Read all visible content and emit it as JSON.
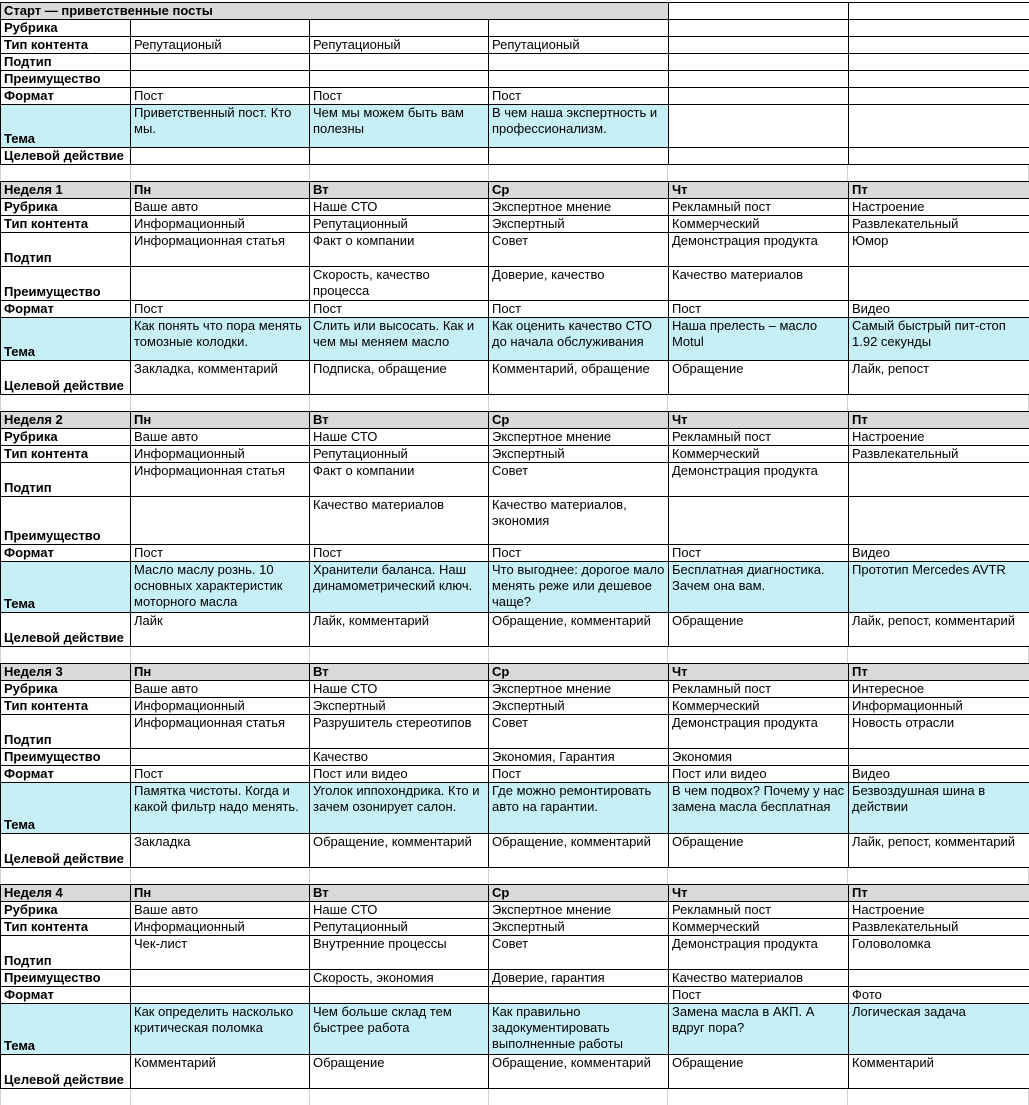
{
  "colors": {
    "section_header_bg": "#d9d9d9",
    "theme_row_bg": "#c6f0f6",
    "grid_border": "#000000"
  },
  "day_headers": [
    "Пн",
    "Вт",
    "Ср",
    "Чт",
    "Пт"
  ],
  "sections": [
    {
      "title": "Старт — приветственные посты",
      "merged_title": true,
      "rows": [
        {
          "label": "Рубрика",
          "cells": [
            "",
            "",
            "",
            "",
            ""
          ]
        },
        {
          "label": "Тип контента",
          "cells": [
            "Репутационый",
            "Репутационый",
            "Репутационый",
            "",
            ""
          ]
        },
        {
          "label": "Подтип",
          "cells": [
            "",
            "",
            "",
            "",
            ""
          ]
        },
        {
          "label": "Преимущество",
          "cells": [
            "",
            "",
            "",
            "",
            ""
          ]
        },
        {
          "label": "Формат",
          "cells": [
            "Пост",
            "Пост",
            "Пост",
            "",
            ""
          ]
        },
        {
          "label": "Тема",
          "highlight": true,
          "highlight_cols": 3,
          "cells": [
            "Приветственный пост. Кто мы.",
            "Чем мы можем быть вам полезны",
            "В чем наша экспертность и профессионализм.",
            "",
            ""
          ]
        },
        {
          "label": "Целевой действие",
          "cells": [
            "",
            "",
            "",
            "",
            ""
          ]
        }
      ]
    },
    {
      "title": "Неделя 1",
      "merged_title": false,
      "rows": [
        {
          "label": "Рубрика",
          "cells": [
            "Ваше авто",
            "Наше СТО",
            "Экспертное мнение",
            "Рекламный пост",
            "Настроение"
          ]
        },
        {
          "label": "Тип контента",
          "cells": [
            "Информационный",
            "Репутационный",
            "Экспертный",
            "Коммерческий",
            "Развлекательный"
          ]
        },
        {
          "label": "Подтип",
          "cells": [
            "Информационная статья",
            "Факт о компании",
            "Совет",
            "Демонстрация продукта",
            "Юмор"
          ]
        },
        {
          "label": "Преимущество",
          "cells": [
            "",
            "Скорость, качество процесса",
            "Доверие, качество",
            "Качество материалов",
            ""
          ]
        },
        {
          "label": "Формат",
          "cells": [
            "Пост",
            "Пост",
            "Пост",
            "Пост",
            "Видео"
          ]
        },
        {
          "label": "Тема",
          "highlight": true,
          "highlight_cols": 5,
          "cells": [
            "Как понять что пора менять томозные колодки.",
            "Слить или высосать. Как и чем мы меняем масло",
            "Как оценить качество СТО до начала обслуживания",
            "Наша прелесть – масло Motul",
            "Самый быстрый пит-стоп 1.92 секунды"
          ]
        },
        {
          "label": "Целевой действие",
          "cells": [
            "Закладка, комментарий",
            "Подписка, обращение",
            "Комментарий, обращение",
            "Обращение",
            "Лайк, репост"
          ]
        }
      ]
    },
    {
      "title": "Неделя 2",
      "merged_title": false,
      "rows": [
        {
          "label": "Рубрика",
          "cells": [
            "Ваше авто",
            "Наше СТО",
            "Экспертное мнение",
            "Рекламный пост",
            "Настроение"
          ]
        },
        {
          "label": "Тип контента",
          "cells": [
            "Информационный",
            "Репутационный",
            "Экспертный",
            "Коммерческий",
            "Развлекательный"
          ]
        },
        {
          "label": "Подтип",
          "cells": [
            "Информационная статья",
            "Факт о компании",
            "Совет",
            "Демонстрация продукта",
            ""
          ]
        },
        {
          "label": "Преимущество",
          "cells": [
            "",
            "Качество материалов",
            "Качество материалов, экономия",
            "",
            ""
          ]
        },
        {
          "label": "Формат",
          "cells": [
            "Пост",
            "Пост",
            "Пост",
            "Пост",
            "Видео"
          ]
        },
        {
          "label": "Тема",
          "highlight": true,
          "highlight_cols": 5,
          "cells": [
            "Масло маслу рознь. 10 основных характеристик моторного масла",
            "Хранители баланса. Наш динамометрический ключ.",
            "Что выгоднее: дорогое мало менять реже или дешевое чаще?",
            "Бесплатная диагностика. Зачем она вам.",
            "Прототип Mercedes AVTR"
          ]
        },
        {
          "label": "Целевой действие",
          "cells": [
            "Лайк",
            "Лайк, комментарий",
            "Обращение, комментарий",
            "Обращение",
            "Лайк, репост, комментарий"
          ]
        }
      ]
    },
    {
      "title": "Неделя 3",
      "merged_title": false,
      "rows": [
        {
          "label": "Рубрика",
          "cells": [
            "Ваше авто",
            "Наше СТО",
            "Экспертное мнение",
            "Рекламный пост",
            "Интересное"
          ]
        },
        {
          "label": "Тип контента",
          "cells": [
            "Информационный",
            "Экспертный",
            "Экспертный",
            "Коммерческий",
            "Информационный"
          ]
        },
        {
          "label": "Подтип",
          "cells": [
            "Информационная статья",
            "Разрушитель стереотипов",
            "Совет",
            "Демонстрация продукта",
            "Новость отрасли"
          ]
        },
        {
          "label": "Преимущество",
          "cells": [
            "",
            "Качество",
            "Экономия, Гарантия",
            "Экономия",
            ""
          ]
        },
        {
          "label": "Формат",
          "cells": [
            "Пост",
            "Пост или видео",
            "Пост",
            "Пост или видео",
            "Видео"
          ]
        },
        {
          "label": "Тема",
          "highlight": true,
          "highlight_cols": 5,
          "cells": [
            "Памятка чистоты. Когда и какой фильтр надо менять.",
            "Уголок иппохондрика. Кто и зачем озонирует салон.",
            "Где можно ремонтировать авто на гарантии.",
            "В чем подвох? Почему у нас замена масла бесплатная",
            "Безвоздушная шина в действии"
          ]
        },
        {
          "label": "Целевой действие",
          "cells": [
            "Закладка",
            "Обращение, комментарий",
            "Обращение, комментарий",
            "Обращение",
            "Лайк, репост, комментарий"
          ]
        }
      ]
    },
    {
      "title": "Неделя 4",
      "merged_title": false,
      "rows": [
        {
          "label": "Рубрика",
          "cells": [
            "Ваше авто",
            "Наше СТО",
            "Экспертное мнение",
            "Рекламный пост",
            "Настроение"
          ]
        },
        {
          "label": "Тип контента",
          "cells": [
            "Информационный",
            "Репутационный",
            "Экспертный",
            "Коммерческий",
            "Развлекательный"
          ]
        },
        {
          "label": "Подтип",
          "cells": [
            "Чек-лист",
            "Внутренние процессы",
            "Совет",
            "Демонстрация продукта",
            "Головоломка"
          ]
        },
        {
          "label": "Преимущество",
          "cells": [
            "",
            "Скорость, экономия",
            "Доверие, гарантия",
            "Качество материалов",
            ""
          ]
        },
        {
          "label": "Формат",
          "cells": [
            "",
            "",
            "",
            "Пост",
            "Фото"
          ]
        },
        {
          "label": "Тема",
          "highlight": true,
          "highlight_cols": 5,
          "cells": [
            "Как определить насколько критическая поломка",
            "Чем больше склад тем быстрее работа",
            "Как правильно задокументировать выполненные работы",
            "Замена масла в АКП. А вдруг пора?",
            "Логическая задача"
          ]
        },
        {
          "label": "Целевой действие",
          "cells": [
            "Комментарий",
            "Обращение",
            "Обращение, комментарий",
            "Обращение",
            "Комментарий"
          ]
        }
      ]
    }
  ]
}
